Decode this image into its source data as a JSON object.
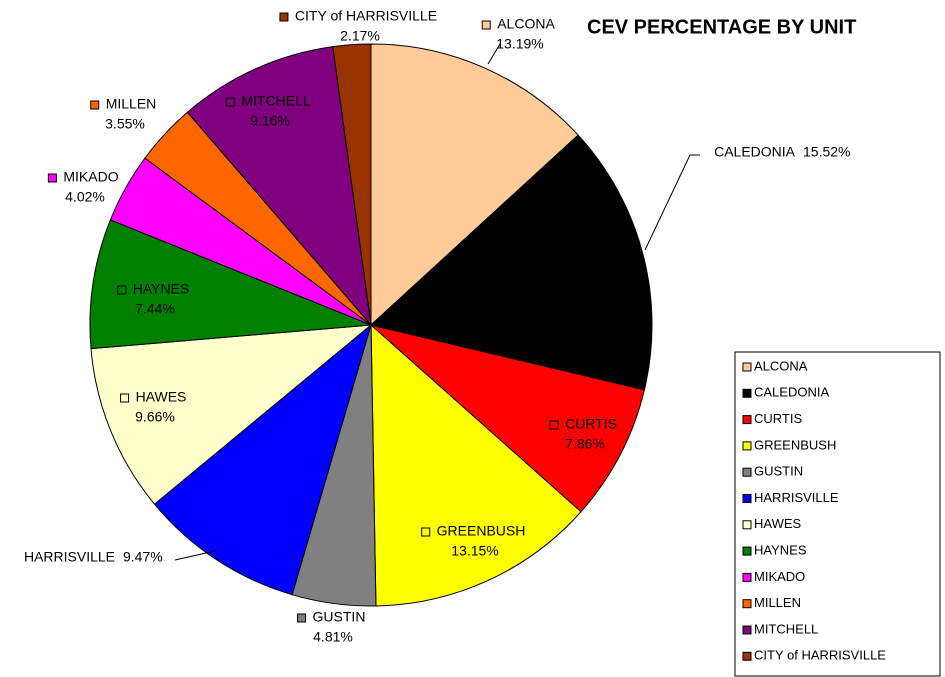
{
  "chart_data": {
    "type": "pie",
    "title": "CEV PERCENTAGE BY UNIT",
    "categories": [
      "ALCONA",
      "CALEDONIA",
      "CURTIS",
      "GREENBUSH",
      "GUSTIN",
      "HARRISVILLE",
      "HAWES",
      "HAYNES",
      "MIKADO",
      "MILLEN",
      "MITCHELL",
      "CITY of HARRISVILLE"
    ],
    "values": [
      13.19,
      15.52,
      7.86,
      13.15,
      4.81,
      9.47,
      9.66,
      7.44,
      4.02,
      3.55,
      9.16,
      2.17
    ],
    "value_labels": [
      "13.19%",
      "15.52%",
      "7.86%",
      "13.15%",
      "4.81%",
      "9.47%",
      "9.66%",
      "7.44%",
      "4.02%",
      "3.55%",
      "9.16%",
      "2.17%"
    ],
    "colors": [
      "#FFCC99",
      "#000000",
      "#FF0000",
      "#FFFF00",
      "#808080",
      "#0000FF",
      "#FFFFCC",
      "#008000",
      "#FF00FF",
      "#FF6600",
      "#800080",
      "#993300"
    ],
    "legend": "right"
  }
}
